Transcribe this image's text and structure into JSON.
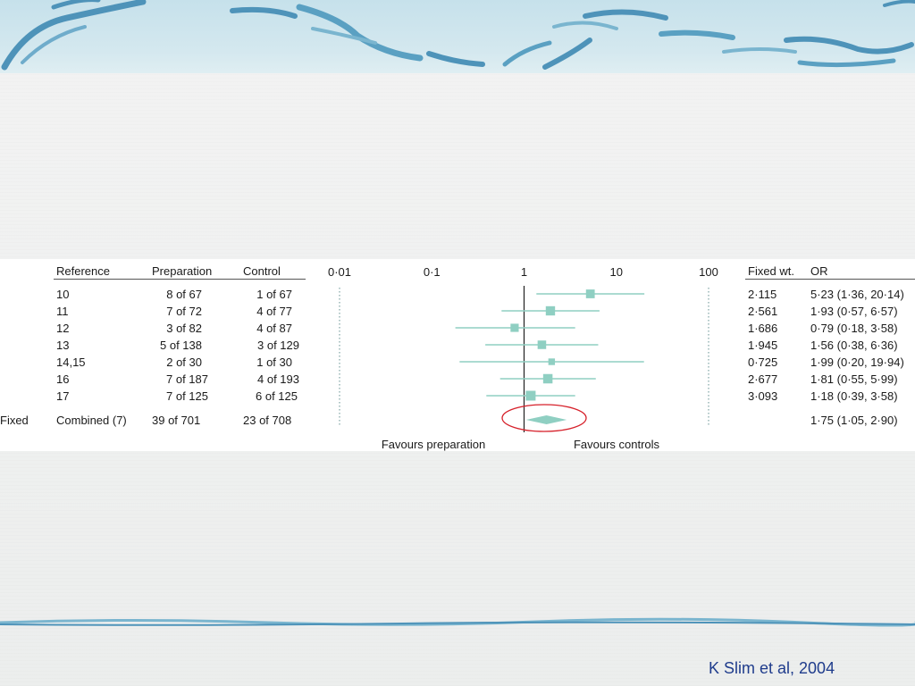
{
  "columns": {
    "reference": "Reference",
    "preparation": "Preparation",
    "control": "Control",
    "fixed_wt": "Fixed wt.",
    "or": "OR"
  },
  "rows": [
    {
      "reference": "10",
      "preparation": "8 of 67",
      "control": "1 of 67",
      "fixed_wt": "2·115",
      "or_text": "5·23 (1·36, 20·14)"
    },
    {
      "reference": "11",
      "preparation": "7 of 72",
      "control": "4 of 77",
      "fixed_wt": "2·561",
      "or_text": "1·93 (0·57, 6·57)"
    },
    {
      "reference": "12",
      "preparation": "3 of 82",
      "control": "4 of 87",
      "fixed_wt": "1·686",
      "or_text": "0·79 (0·18, 3·58)"
    },
    {
      "reference": "13",
      "preparation": "5 of 138",
      "control": "3 of 129",
      "fixed_wt": "1·945",
      "or_text": "1·56 (0·38, 6·36)"
    },
    {
      "reference": "14,15",
      "preparation": "2 of 30",
      "control": "1 of 30",
      "fixed_wt": "0·725",
      "or_text": "1·99 (0·20, 19·94)"
    },
    {
      "reference": "16",
      "preparation": "7 of 187",
      "control": "4 of 193",
      "fixed_wt": "2·677",
      "or_text": "1·81 (0·55, 5·99)"
    },
    {
      "reference": "17",
      "preparation": "7 of 125",
      "control": "6 of 125",
      "fixed_wt": "3·093",
      "or_text": "1·18 (0·39, 3·58)"
    }
  ],
  "combined": {
    "label": "Fixed",
    "reference": "Combined (7)",
    "preparation": "39 of 701",
    "control": "23 of 708",
    "or_text": "1·75 (1·05, 2·90)"
  },
  "chart_data": {
    "type": "forest",
    "scale": "log",
    "xlim": [
      0.01,
      100
    ],
    "ticks": [
      {
        "value": 0.01,
        "label": "0·01"
      },
      {
        "value": 0.1,
        "label": "0·1"
      },
      {
        "value": 1,
        "label": "1"
      },
      {
        "value": 10,
        "label": "10"
      },
      {
        "value": 100,
        "label": "100"
      }
    ],
    "points": [
      {
        "or": 5.23,
        "lo": 1.36,
        "hi": 20.14,
        "weight": 2.115
      },
      {
        "or": 1.93,
        "lo": 0.57,
        "hi": 6.57,
        "weight": 2.561
      },
      {
        "or": 0.79,
        "lo": 0.18,
        "hi": 3.58,
        "weight": 1.686
      },
      {
        "or": 1.56,
        "lo": 0.38,
        "hi": 6.36,
        "weight": 1.945
      },
      {
        "or": 1.99,
        "lo": 0.2,
        "hi": 19.94,
        "weight": 0.725
      },
      {
        "or": 1.81,
        "lo": 0.55,
        "hi": 5.99,
        "weight": 2.677
      },
      {
        "or": 1.18,
        "lo": 0.39,
        "hi": 3.58,
        "weight": 3.093
      }
    ],
    "pooled": {
      "or": 1.75,
      "lo": 1.05,
      "hi": 2.9
    },
    "left_label": "Favours preparation",
    "right_label": "Favours controls",
    "marker_color": "#8fcfc2",
    "highlight_color": "#d6202a"
  },
  "credit": "K Slim et al, 2004"
}
